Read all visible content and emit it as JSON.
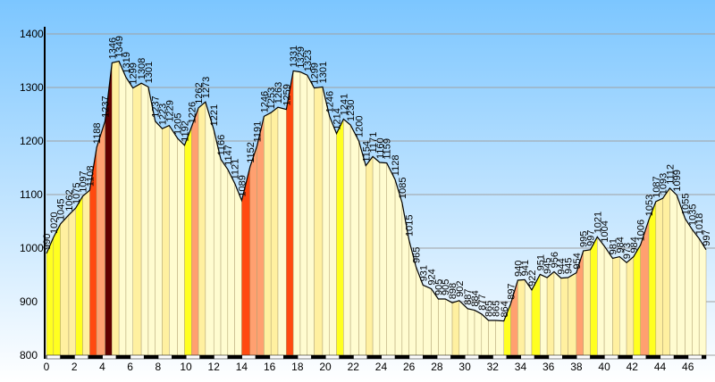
{
  "chart_data": {
    "type": "area",
    "x": [
      0,
      0.5,
      1.0,
      1.6,
      2.1,
      2.6,
      3.1,
      3.6,
      4.2,
      4.7,
      5.2,
      5.7,
      6.2,
      6.8,
      7.3,
      7.8,
      8.3,
      8.8,
      9.4,
      9.9,
      10.4,
      10.9,
      11.4,
      12.0,
      12.5,
      13.0,
      13.5,
      14.0,
      14.6,
      15.1,
      15.6,
      16.1,
      16.6,
      17.2,
      17.7,
      18.2,
      18.7,
      19.2,
      19.8,
      20.3,
      20.8,
      21.3,
      21.8,
      22.4,
      22.9,
      23.4,
      23.9,
      24.4,
      25.0,
      25.5,
      26.0,
      26.5,
      27.0,
      27.6,
      28.1,
      28.6,
      29.1,
      29.6,
      30.2,
      30.7,
      31.2,
      31.7,
      32.2,
      32.8,
      33.3,
      33.8,
      34.3,
      34.8,
      35.4,
      35.9,
      36.4,
      36.9,
      37.4,
      38.0,
      38.5,
      39.0,
      39.5,
      40.0,
      40.6,
      41.1,
      41.6,
      42.1,
      42.6,
      43.2,
      43.7,
      44.2,
      44.7,
      45.2,
      45.8,
      46.3,
      46.8,
      47.3
    ],
    "values": [
      990,
      1020,
      1045,
      1062,
      1075,
      1097,
      1108,
      1188,
      1237,
      1346,
      1349,
      1319,
      1299,
      1308,
      1301,
      1237,
      1223,
      1229,
      1205,
      1192,
      1226,
      1262,
      1273,
      1221,
      1166,
      1147,
      1121,
      1089,
      1152,
      1191,
      1246,
      1253,
      1263,
      1259,
      1331,
      1329,
      1323,
      1299,
      1301,
      1246,
      1214,
      1241,
      1230,
      1200,
      1154,
      1171,
      1160,
      1159,
      1128,
      1085,
      1015,
      965,
      931,
      924,
      905,
      905,
      898,
      902,
      887,
      884,
      877,
      865,
      865,
      864,
      897,
      940,
      941,
      922,
      951,
      945,
      956,
      944,
      945,
      954,
      995,
      997,
      1021,
      1004,
      981,
      984,
      973,
      984,
      1006,
      1053,
      1087,
      1093,
      1112,
      1099,
      1055,
      1035,
      1018,
      997
    ],
    "segment_colors": [
      "#ffff20",
      "#ffff20",
      "#fff0a0",
      "#fff0a0",
      "#ffff20",
      "#fff0a0",
      "#ff4a10",
      "#ffa070",
      "#600000",
      "#fff0a0",
      "#fffcd0",
      "#fffcd0",
      "#fff0a0",
      "#fffcd0",
      "#fffcd0",
      "#fffcd0",
      "#fff0a0",
      "#fffcd0",
      "#fffcd0",
      "#ffff20",
      "#ffa070",
      "#fff0a0",
      "#fffcd0",
      "#fffcd0",
      "#fffcd0",
      "#fffcd0",
      "#fffcd0",
      "#ff4a10",
      "#ffa070",
      "#ffa070",
      "#fff0a0",
      "#fff0a0",
      "#fffcd0",
      "#ff4a10",
      "#fffcd0",
      "#fffcd0",
      "#fffcd0",
      "#fff0a0",
      "#fffcd0",
      "#fffcd0",
      "#ffff20",
      "#fffcd0",
      "#fffcd0",
      "#fffcd0",
      "#fff0a0",
      "#fffcd0",
      "#fffcd0",
      "#fffcd0",
      "#fffcd0",
      "#fffcd0",
      "#fffcd0",
      "#fffcd0",
      "#fffcd0",
      "#fffcd0",
      "#fffcd0",
      "#fffcd0",
      "#fff0a0",
      "#fffcd0",
      "#fffcd0",
      "#fffcd0",
      "#fffcd0",
      "#fffcd0",
      "#fffcd0",
      "#ffff20",
      "#ffa070",
      "#fff0a0",
      "#fffcd0",
      "#ffff20",
      "#fffcd0",
      "#fff0a0",
      "#fffcd0",
      "#fff0a0",
      "#fff0a0",
      "#ffa070",
      "#fff0a0",
      "#ffff20",
      "#fffcd0",
      "#fffcd0",
      "#fff0a0",
      "#fffcd0",
      "#fff0a0",
      "#ffff20",
      "#ffa070",
      "#ffff20",
      "#fff0a0",
      "#fff0a0",
      "#fffcd0",
      "#fffcd0",
      "#fffcd0",
      "#fffcd0",
      "#fffcd0"
    ],
    "xlim": [
      0,
      47.3
    ],
    "ylim": [
      800,
      1400
    ],
    "xticks": [
      0,
      2,
      4,
      6,
      8,
      10,
      12,
      14,
      16,
      18,
      20,
      22,
      24,
      26,
      28,
      30,
      32,
      34,
      36,
      38,
      40,
      42,
      44,
      46
    ],
    "yticks": [
      800,
      900,
      1000,
      1100,
      1200,
      1300,
      1400
    ],
    "grid": true
  }
}
